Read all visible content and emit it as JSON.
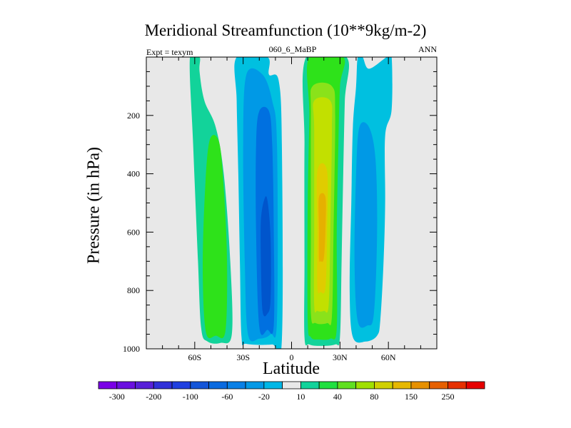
{
  "chart_data": {
    "type": "contour",
    "title": "Meridional Streamfunction (10**9kg/m-2)",
    "subtitle_left": "Expt = texym",
    "subtitle_center": "060_6_MaBP",
    "subtitle_right": "ANN",
    "xlabel": "Latitude",
    "ylabel": "Pressure (in hPa)",
    "xlim": [
      -90,
      90
    ],
    "ylim": [
      1000,
      0
    ],
    "x_ticks": [
      {
        "value": -60,
        "label": "60S"
      },
      {
        "value": -30,
        "label": "30S"
      },
      {
        "value": 0,
        "label": "0"
      },
      {
        "value": 30,
        "label": "30N"
      },
      {
        "value": 60,
        "label": "60N"
      }
    ],
    "y_ticks": [
      {
        "value": 200,
        "label": "200"
      },
      {
        "value": 400,
        "label": "400"
      },
      {
        "value": 600,
        "label": "600"
      },
      {
        "value": 800,
        "label": "800"
      },
      {
        "value": 1000,
        "label": "1000"
      }
    ],
    "background_color": "#e8e8e8",
    "contour_regions": [
      {
        "level": 10,
        "color": "#12d39a",
        "points": [
          [
            -63,
            0
          ],
          [
            -57,
            0
          ],
          [
            -57,
            50
          ],
          [
            -54,
            150
          ],
          [
            -47,
            240
          ],
          [
            -42,
            400
          ],
          [
            -38,
            700
          ],
          [
            -37,
            950
          ],
          [
            -44,
            980
          ],
          [
            -52,
            975
          ],
          [
            -56,
            930
          ],
          [
            -58,
            700
          ],
          [
            -61,
            300
          ]
        ]
      },
      {
        "level": 20,
        "color": "#2ee21a",
        "points": [
          [
            -51,
            290
          ],
          [
            -45,
            290
          ],
          [
            -42,
            450
          ],
          [
            -40,
            700
          ],
          [
            -41,
            940
          ],
          [
            -47,
            955
          ],
          [
            -53,
            945
          ],
          [
            -55,
            750
          ],
          [
            -54,
            500
          ]
        ]
      },
      {
        "level": -10,
        "color": "#00c0e0",
        "points": [
          [
            -34,
            0
          ],
          [
            -15,
            0
          ],
          [
            -14,
            60
          ],
          [
            -8,
            80
          ],
          [
            -6,
            300
          ],
          [
            -6,
            970
          ],
          [
            -12,
            985
          ],
          [
            -28,
            983
          ],
          [
            -31,
            960
          ],
          [
            -32,
            700
          ],
          [
            -33,
            400
          ],
          [
            -34,
            150
          ]
        ]
      },
      {
        "level": -20,
        "color": "#0099e6",
        "points": [
          [
            -28,
            60
          ],
          [
            -18,
            60
          ],
          [
            -12,
            150
          ],
          [
            -9,
            300
          ],
          [
            -9,
            900
          ],
          [
            -13,
            950
          ],
          [
            -20,
            965
          ],
          [
            -27,
            950
          ],
          [
            -29,
            700
          ],
          [
            -30,
            300
          ]
        ]
      },
      {
        "level": -40,
        "color": "#0070e0",
        "points": [
          [
            -20,
            185
          ],
          [
            -14,
            185
          ],
          [
            -12,
            300
          ],
          [
            -11,
            600
          ],
          [
            -11,
            920
          ],
          [
            -15,
            935
          ],
          [
            -20,
            925
          ],
          [
            -22,
            600
          ],
          [
            -22,
            300
          ]
        ]
      },
      {
        "level": -60,
        "color": "#0055cc",
        "points": [
          [
            -17,
            490
          ],
          [
            -15,
            490
          ],
          [
            -13,
            620
          ],
          [
            -13,
            830
          ],
          [
            -15,
            880
          ],
          [
            -18,
            870
          ],
          [
            -19,
            700
          ],
          [
            -19,
            560
          ]
        ]
      },
      {
        "level": 10,
        "color": "#12d39a",
        "points": [
          [
            9,
            0
          ],
          [
            34,
            0
          ],
          [
            33,
            150
          ],
          [
            32,
            400
          ],
          [
            31,
            700
          ],
          [
            30,
            960
          ],
          [
            27,
            985
          ],
          [
            18,
            990
          ],
          [
            11,
            985
          ],
          [
            8,
            960
          ],
          [
            8,
            700
          ],
          [
            8,
            300
          ]
        ]
      },
      {
        "level": 20,
        "color": "#2ee21a",
        "points": [
          [
            11,
            0
          ],
          [
            32,
            0
          ],
          [
            30,
            100
          ],
          [
            29,
            300
          ],
          [
            28,
            600
          ],
          [
            28,
            930
          ],
          [
            24,
            965
          ],
          [
            17,
            968
          ],
          [
            12,
            960
          ],
          [
            10,
            900
          ],
          [
            10,
            500
          ],
          [
            11,
            200
          ]
        ]
      },
      {
        "level": 40,
        "color": "#8ae21a",
        "points": [
          [
            13,
            100
          ],
          [
            25,
            100
          ],
          [
            27,
            200
          ],
          [
            26,
            600
          ],
          [
            25,
            890
          ],
          [
            22,
            912
          ],
          [
            15,
            912
          ],
          [
            12,
            880
          ],
          [
            12,
            600
          ],
          [
            12,
            200
          ]
        ]
      },
      {
        "level": 60,
        "color": "#c2e000",
        "points": [
          [
            14,
            150
          ],
          [
            24,
            150
          ],
          [
            25,
            250
          ],
          [
            24,
            600
          ],
          [
            23,
            850
          ],
          [
            20,
            870
          ],
          [
            16,
            870
          ],
          [
            14,
            850
          ],
          [
            14,
            600
          ],
          [
            14,
            250
          ]
        ]
      },
      {
        "level": 80,
        "color": "#e0cc00",
        "points": [
          [
            16,
            390
          ],
          [
            22,
            390
          ],
          [
            22,
            600
          ],
          [
            21,
            790
          ],
          [
            18,
            805
          ],
          [
            16,
            790
          ],
          [
            16,
            600
          ]
        ]
      },
      {
        "level": 100,
        "color": "#e6b000",
        "points": [
          [
            17,
            480
          ],
          [
            21,
            480
          ],
          [
            21,
            590
          ],
          [
            20,
            690
          ],
          [
            18,
            700
          ],
          [
            17,
            690
          ],
          [
            17,
            590
          ]
        ]
      },
      {
        "level": -10,
        "color": "#00c0e0",
        "points": [
          [
            41,
            0
          ],
          [
            44,
            0
          ],
          [
            48,
            40
          ],
          [
            59,
            0
          ],
          [
            62,
            0
          ],
          [
            62,
            180
          ],
          [
            58,
            270
          ],
          [
            58,
            500
          ],
          [
            57,
            700
          ],
          [
            55,
            900
          ],
          [
            53,
            955
          ],
          [
            46,
            975
          ],
          [
            38,
            960
          ],
          [
            36,
            800
          ],
          [
            37,
            500
          ],
          [
            38,
            240
          ],
          [
            40,
            100
          ]
        ]
      },
      {
        "level": -20,
        "color": "#0099e6",
        "points": [
          [
            42,
            240
          ],
          [
            48,
            240
          ],
          [
            52,
            350
          ],
          [
            53,
            600
          ],
          [
            51,
            880
          ],
          [
            47,
            920
          ],
          [
            41,
            905
          ],
          [
            39,
            700
          ],
          [
            40,
            400
          ]
        ]
      }
    ],
    "colorbar_levels": [
      "-300",
      "-250",
      "-200",
      "-150",
      "-100",
      "-80",
      "-60",
      "-40",
      "-20",
      "-10",
      "10",
      "20",
      "40",
      "60",
      "80",
      "100",
      "150",
      "200",
      "250",
      "300"
    ],
    "colorbar_labels": [
      "-300",
      "-200",
      "-100",
      "-60",
      "-20",
      "10",
      "40",
      "80",
      "150",
      "250"
    ],
    "colorbar_colors": [
      "#7a00e6",
      "#6a10e0",
      "#5820d8",
      "#3030d8",
      "#2040e0",
      "#1455d8",
      "#0a6ae0",
      "#0a80e6",
      "#0599e6",
      "#00b7e6",
      "#e8e8e8",
      "#12d39a",
      "#20e040",
      "#60e020",
      "#a0e000",
      "#d0d000",
      "#e6b800",
      "#e69000",
      "#e66000",
      "#e63000",
      "#e60000"
    ]
  }
}
